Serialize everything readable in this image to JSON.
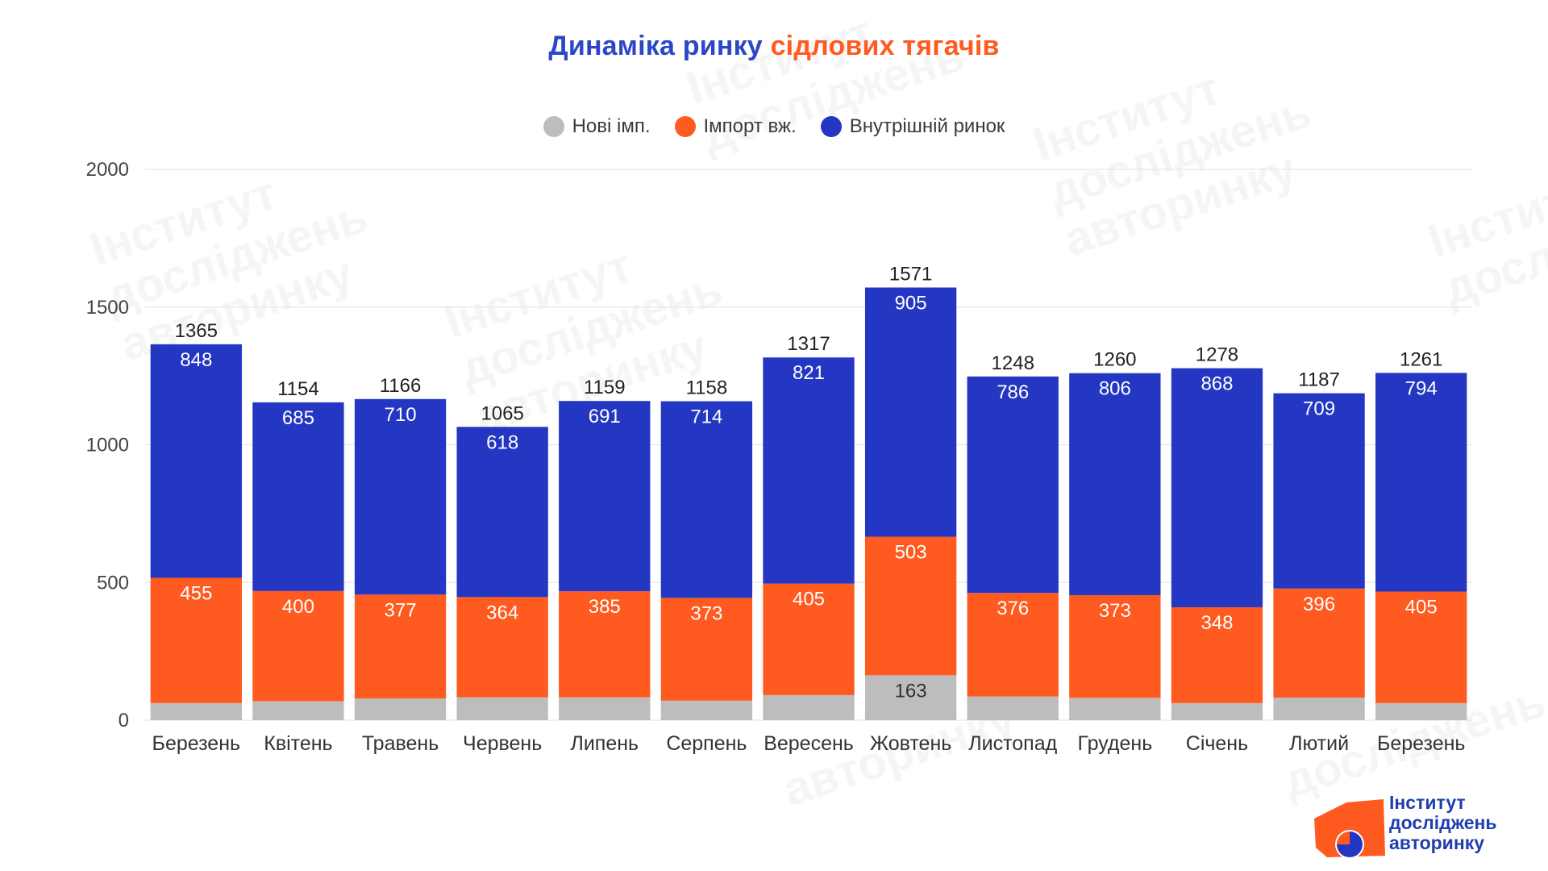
{
  "title": {
    "part1": "Динаміка ринку",
    "part2": "сідлових тягачів"
  },
  "legend": [
    {
      "label": "Нові імп.",
      "color": "#bdbdbd",
      "icon": "circle-grey-icon"
    },
    {
      "label": "Імпорт вж.",
      "color": "#ff5a1f",
      "icon": "circle-orange-icon"
    },
    {
      "label": "Внутрішній ринок",
      "color": "#2437c2",
      "icon": "circle-blue-icon"
    }
  ],
  "colors": {
    "new": "#bdbdbd",
    "used": "#ff5a1f",
    "domestic": "#2437c2",
    "grid": "#e6e6e6",
    "axis_text": "#444444"
  },
  "logo": {
    "line1": "Інститут",
    "line2": "досліджень",
    "line3": "авторинку",
    "icon": "institute-logo-icon"
  },
  "chart_data": {
    "type": "bar",
    "stacked": true,
    "categories": [
      "Березень",
      "Квітень",
      "Травень",
      "Червень",
      "Липень",
      "Серпень",
      "Вересень",
      "Жовтень",
      "Листопад",
      "Грудень",
      "Січень",
      "Лютий",
      "Березень"
    ],
    "series": [
      {
        "name": "Нові імп.",
        "values": [
          62,
          69,
          79,
          83,
          83,
          71,
          91,
          163,
          86,
          81,
          62,
          82,
          62
        ],
        "labels": [
          "",
          "",
          "",
          "",
          "",
          "",
          "",
          "163",
          "",
          "",
          "",
          "",
          ""
        ]
      },
      {
        "name": "Імпорт вж.",
        "values": [
          455,
          400,
          377,
          364,
          385,
          373,
          405,
          503,
          376,
          373,
          348,
          396,
          405
        ]
      },
      {
        "name": "Внутрішній ринок",
        "values": [
          848,
          685,
          710,
          618,
          691,
          714,
          821,
          905,
          786,
          806,
          868,
          709,
          794
        ]
      }
    ],
    "totals": [
      1365,
      1154,
      1166,
      1065,
      1159,
      1158,
      1317,
      1571,
      1248,
      1260,
      1278,
      1187,
      1261
    ],
    "yticks": [
      0,
      500,
      1000,
      1500,
      2000
    ],
    "ylim": [
      0,
      2000
    ],
    "grid": true,
    "legend_position": "top-center"
  }
}
